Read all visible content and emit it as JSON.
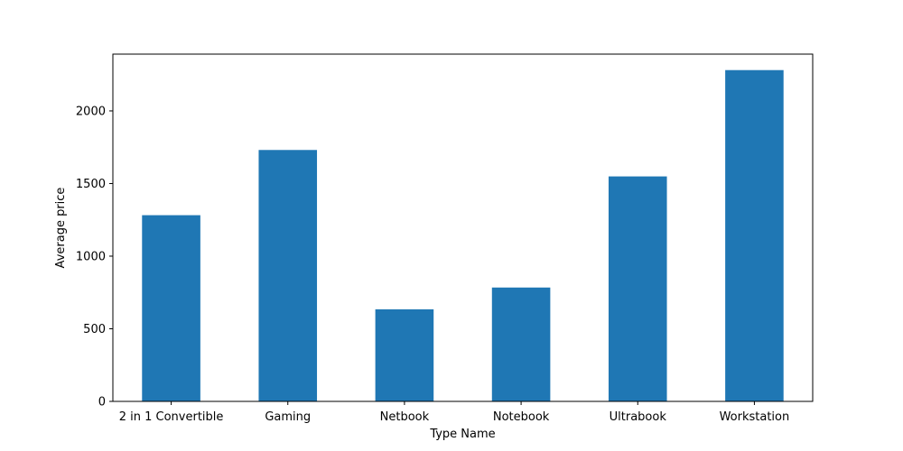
{
  "chart_data": {
    "type": "bar",
    "categories": [
      "2 in 1 Convertible",
      "Gaming",
      "Netbook",
      "Notebook",
      "Ultrabook",
      "Workstation"
    ],
    "values": [
      1282,
      1731,
      634,
      784,
      1549,
      2281
    ],
    "xlabel": "Type Name",
    "ylabel": "Average price",
    "ylim": [
      0,
      2391
    ],
    "yticks": [
      0,
      500,
      1000,
      1500,
      2000
    ],
    "bar_color": "#1f77b4",
    "grid": false,
    "legend": "none"
  }
}
